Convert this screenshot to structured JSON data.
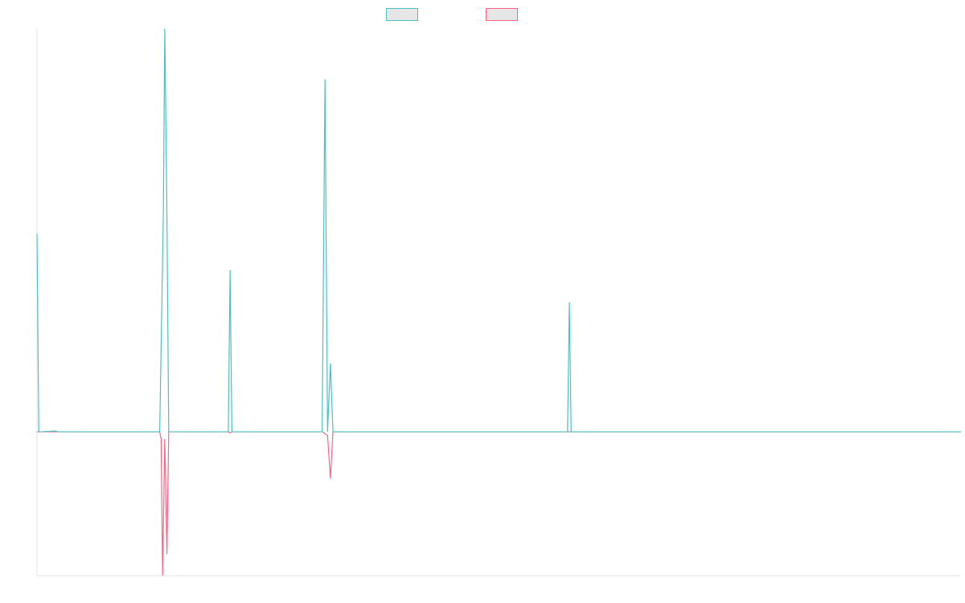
{
  "chart_data": {
    "type": "line",
    "title": "",
    "xlabel": "",
    "ylabel": "",
    "xlim": [
      0,
      256
    ],
    "ylim": [
      -0.4,
      1.12
    ],
    "grid": false,
    "legend_position": "top-center",
    "series": [
      {
        "color": "#4bc0c0",
        "points": [
          [
            0,
            0.55
          ],
          [
            0.5,
            0
          ],
          [
            1,
            0
          ],
          [
            5,
            0.002
          ],
          [
            6,
            0
          ],
          [
            34,
            0
          ],
          [
            35,
            0.6
          ],
          [
            35.4,
            1.12
          ],
          [
            36,
            0.6
          ],
          [
            36.5,
            0
          ],
          [
            53,
            0
          ],
          [
            53.5,
            0.45
          ],
          [
            54,
            0
          ],
          [
            79,
            0
          ],
          [
            79.8,
            0.98
          ],
          [
            80.5,
            0
          ],
          [
            81.3,
            0.19
          ],
          [
            82,
            0
          ],
          [
            147,
            0
          ],
          [
            147.5,
            0.36
          ],
          [
            148,
            0
          ],
          [
            256,
            0
          ]
        ]
      },
      {
        "color": "#ff6384",
        "points": [
          [
            0,
            0
          ],
          [
            34,
            0
          ],
          [
            34.4,
            -0.02
          ],
          [
            34.8,
            -0.4
          ],
          [
            35.4,
            -0.02
          ],
          [
            36,
            -0.34
          ],
          [
            36.5,
            0
          ],
          [
            53,
            0
          ],
          [
            53.5,
            -0.003
          ],
          [
            54,
            0
          ],
          [
            79,
            0
          ],
          [
            80.5,
            -0.01
          ],
          [
            81.3,
            -0.13
          ],
          [
            82,
            0
          ],
          [
            256,
            0
          ]
        ]
      }
    ]
  }
}
